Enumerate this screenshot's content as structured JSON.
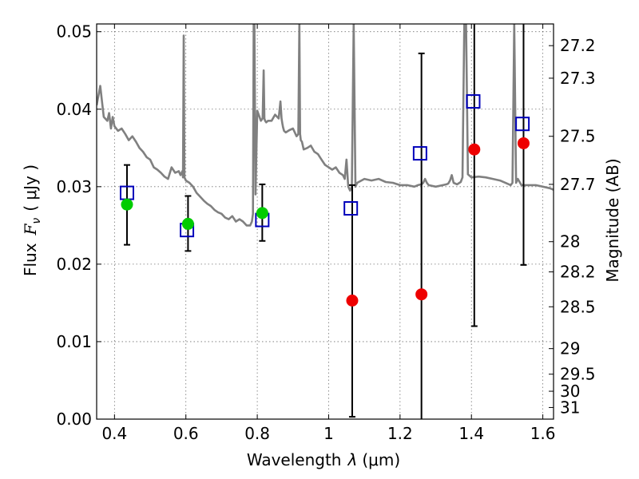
{
  "chart_data": {
    "type": "scatter",
    "xlabel_prefix": "Wavelength",
    "xlabel_var": "λ",
    "xlabel_unit": "(μm)",
    "ylabel_prefix": "Flux",
    "ylabel_var": "F",
    "ylabel_sub": "ν",
    "ylabel_unit": "( μJy )",
    "y2label": "Magnitude (AB)",
    "xlim": [
      0.35,
      1.63
    ],
    "ylim": [
      0.0,
      0.051
    ],
    "grid": true,
    "x_ticks": [
      0.4,
      0.6,
      0.8,
      1.0,
      1.2,
      1.4,
      1.6
    ],
    "x_tick_labels": [
      "0.4",
      "0.6",
      "0.8",
      "1",
      "1.2",
      "1.4",
      "1.6"
    ],
    "y_ticks": [
      0.0,
      0.01,
      0.02,
      0.03,
      0.04,
      0.05
    ],
    "y_tick_labels": [
      "0.00",
      "0.01",
      "0.02",
      "0.03",
      "0.04",
      "0.05"
    ],
    "y2_tick_labels": [
      "27.2",
      "27.3",
      "27.5",
      "27.7",
      "28",
      "28.2",
      "28.5",
      "29",
      "29.5",
      "30",
      "31"
    ],
    "y2_tick_flux": [
      0.0482,
      0.044,
      0.0365,
      0.0303,
      0.0229,
      0.019,
      0.0145,
      0.0091,
      0.0058,
      0.0036,
      0.0015
    ],
    "series": [
      {
        "marker": "open-square",
        "color": "#0000bb",
        "x": [
          0.435,
          0.603,
          0.814,
          1.062,
          1.256,
          1.405,
          1.543
        ],
        "y": [
          0.0292,
          0.0244,
          0.0257,
          0.0272,
          0.0343,
          0.041,
          0.0381
        ]
      },
      {
        "marker": "filled-circle",
        "color": "#00cc00",
        "x": [
          0.435,
          0.606,
          0.814
        ],
        "y": [
          0.0277,
          0.0252,
          0.0266
        ],
        "err_low": [
          0.0225,
          0.0217,
          0.023
        ],
        "err_high": [
          0.0328,
          0.0288,
          0.0303
        ]
      },
      {
        "marker": "filled-circle",
        "color": "#ee0000",
        "x": [
          1.066,
          1.26,
          1.408,
          1.546
        ],
        "y": [
          0.0153,
          0.0161,
          0.0348,
          0.0356
        ],
        "err_low": [
          0.0003,
          0.0,
          0.012,
          0.0199
        ],
        "err_high": [
          0.0302,
          0.0472,
          0.051,
          0.051
        ]
      },
      {
        "type": "line",
        "color": "#808080",
        "x": [
          0.35,
          0.36,
          0.365,
          0.37,
          0.38,
          0.385,
          0.39,
          0.395,
          0.4,
          0.41,
          0.42,
          0.43,
          0.44,
          0.45,
          0.46,
          0.47,
          0.48,
          0.49,
          0.5,
          0.51,
          0.52,
          0.53,
          0.54,
          0.55,
          0.56,
          0.57,
          0.58,
          0.585,
          0.59,
          0.592,
          0.594,
          0.596,
          0.6,
          0.61,
          0.62,
          0.63,
          0.64,
          0.65,
          0.66,
          0.67,
          0.68,
          0.69,
          0.7,
          0.71,
          0.72,
          0.73,
          0.74,
          0.75,
          0.76,
          0.77,
          0.78,
          0.785,
          0.788,
          0.79,
          0.792,
          0.795,
          0.8,
          0.81,
          0.815,
          0.818,
          0.82,
          0.822,
          0.825,
          0.83,
          0.84,
          0.85,
          0.86,
          0.865,
          0.868,
          0.87,
          0.872,
          0.875,
          0.88,
          0.89,
          0.9,
          0.91,
          0.915,
          0.918,
          0.92,
          0.922,
          0.925,
          0.93,
          0.94,
          0.95,
          0.96,
          0.97,
          0.98,
          0.99,
          1.0,
          1.01,
          1.02,
          1.03,
          1.04,
          1.045,
          1.05,
          1.055,
          1.06,
          1.065,
          1.07,
          1.075,
          1.08,
          1.1,
          1.12,
          1.14,
          1.16,
          1.18,
          1.2,
          1.22,
          1.24,
          1.25,
          1.26,
          1.265,
          1.27,
          1.275,
          1.28,
          1.3,
          1.32,
          1.33,
          1.335,
          1.34,
          1.345,
          1.35,
          1.36,
          1.37,
          1.375,
          1.38,
          1.385,
          1.39,
          1.4,
          1.42,
          1.44,
          1.46,
          1.48,
          1.5,
          1.51,
          1.515,
          1.52,
          1.525,
          1.53,
          1.54,
          1.56,
          1.58,
          1.6,
          1.62,
          1.63
        ],
        "y": [
          0.0405,
          0.043,
          0.041,
          0.039,
          0.0385,
          0.0395,
          0.0375,
          0.039,
          0.0378,
          0.0372,
          0.0375,
          0.0368,
          0.036,
          0.0365,
          0.0358,
          0.035,
          0.0345,
          0.0338,
          0.0335,
          0.0325,
          0.0322,
          0.0318,
          0.0313,
          0.031,
          0.0325,
          0.0318,
          0.032,
          0.0315,
          0.032,
          0.0312,
          0.0495,
          0.0312,
          0.0308,
          0.0305,
          0.03,
          0.0292,
          0.0287,
          0.0282,
          0.0278,
          0.0275,
          0.027,
          0.0267,
          0.0265,
          0.026,
          0.0258,
          0.0262,
          0.0255,
          0.0258,
          0.0255,
          0.025,
          0.025,
          0.0255,
          0.0265,
          0.051,
          0.051,
          0.029,
          0.0398,
          0.0385,
          0.0388,
          0.045,
          0.0388,
          0.0385,
          0.0383,
          0.0385,
          0.0385,
          0.0393,
          0.0388,
          0.041,
          0.0388,
          0.0382,
          0.0377,
          0.0372,
          0.037,
          0.0373,
          0.0375,
          0.0365,
          0.0368,
          0.051,
          0.0368,
          0.036,
          0.0358,
          0.0348,
          0.035,
          0.0353,
          0.0345,
          0.0342,
          0.0335,
          0.0328,
          0.0325,
          0.0322,
          0.0325,
          0.0318,
          0.0315,
          0.031,
          0.0335,
          0.03,
          0.0295,
          0.03,
          0.051,
          0.03,
          0.0305,
          0.031,
          0.0308,
          0.031,
          0.0306,
          0.0305,
          0.0302,
          0.0302,
          0.03,
          0.0302,
          0.0303,
          0.0305,
          0.031,
          0.0305,
          0.0302,
          0.03,
          0.0302,
          0.0303,
          0.0304,
          0.0308,
          0.0315,
          0.0305,
          0.0303,
          0.0306,
          0.0312,
          0.051,
          0.051,
          0.0316,
          0.0312,
          0.0313,
          0.0312,
          0.031,
          0.0308,
          0.0304,
          0.0302,
          0.0305,
          0.051,
          0.0305,
          0.031,
          0.0302,
          0.0302,
          0.0302,
          0.03,
          0.0298,
          0.0296
        ]
      }
    ]
  }
}
